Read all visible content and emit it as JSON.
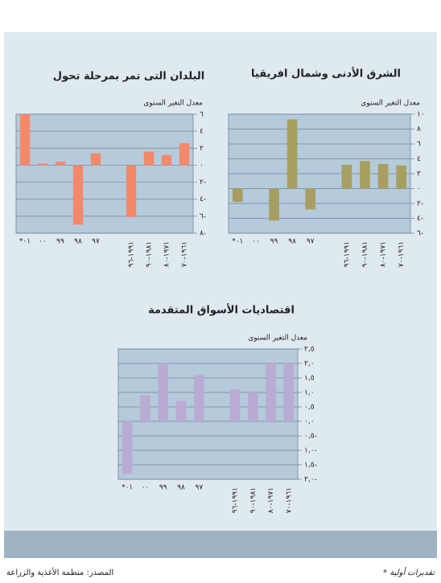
{
  "chart_data": [
    {
      "type": "bar",
      "title": "الشرق الأدنى وشمال افريقيا",
      "ylabel": "معدل التغير السنوى",
      "categories": [
        "*٠١",
        "٠٠",
        "٩٩",
        "٩٨",
        "٩٧",
        null,
        "١٩٩١-٩٦",
        "١٩٨١-٩٠",
        "١٩٧١-٨٠",
        "١٩٦١-٧٠"
      ],
      "values": [
        -1.8,
        0,
        -4.3,
        9.3,
        -2.8,
        null,
        3.2,
        3.7,
        3.3,
        3.1
      ],
      "color": "#a79e60",
      "ylim": [
        -6,
        10
      ],
      "yticks": [
        {
          "value": 10,
          "label": "١٠"
        },
        {
          "value": 8,
          "label": "٨"
        },
        {
          "value": 6,
          "label": "٦"
        },
        {
          "value": 4,
          "label": "٤"
        },
        {
          "value": 2,
          "label": "٢"
        },
        {
          "value": 0,
          "label": "٠"
        },
        {
          "value": -2,
          "label": "٢-"
        },
        {
          "value": -4,
          "label": "٤-"
        },
        {
          "value": -6,
          "label": "٦-"
        }
      ],
      "grid": true
    },
    {
      "type": "bar",
      "title": "البلدان التى تمر بمرحلة تحول",
      "ylabel": "معدل التغير السنوى",
      "categories": [
        "*٠١",
        "٠٠",
        "٩٩",
        "٩٨",
        "٩٧",
        null,
        "١٩٩١-٩٦",
        "١٩٨١-٩٠",
        "١٩٧١-٨٠",
        "١٩٦١-٧٠"
      ],
      "values": [
        6.0,
        0.2,
        0.4,
        -7.0,
        1.4,
        null,
        -6.1,
        1.6,
        1.2,
        2.6
      ],
      "color": "#f4886b",
      "ylim": [
        -8,
        6
      ],
      "yticks": [
        {
          "value": 6,
          "label": "٦"
        },
        {
          "value": 4,
          "label": "٤"
        },
        {
          "value": 2,
          "label": "٢"
        },
        {
          "value": 0,
          "label": "٠"
        },
        {
          "value": -2,
          "label": "٢-"
        },
        {
          "value": -4,
          "label": "٤-"
        },
        {
          "value": -6,
          "label": "٦-"
        },
        {
          "value": -8,
          "label": "٨-"
        }
      ],
      "grid": true
    },
    {
      "type": "bar",
      "title": "اقتصاديات الأسواق المتقدمة",
      "ylabel": "معدل التغير السنوى",
      "categories": [
        "*٠١",
        "٠٠",
        "٩٩",
        "٩٨",
        "٩٧",
        null,
        "١٩٩١-٩٦",
        "١٩٨١-٩٠",
        "١٩٧١-٨٠",
        "١٩٦١-٧٠"
      ],
      "values": [
        -1.8,
        0.9,
        2.0,
        0.7,
        1.6,
        null,
        1.1,
        1.0,
        2.0,
        2.0
      ],
      "color": "#b9abd2",
      "ylim": [
        -2,
        2.5
      ],
      "yticks": [
        {
          "value": 2.5,
          "label": "٢,٥"
        },
        {
          "value": 2,
          "label": "٢,٠"
        },
        {
          "value": 1.5,
          "label": "١,٥"
        },
        {
          "value": 1,
          "label": "١,٠"
        },
        {
          "value": 0.5,
          "label": "٠,٥"
        },
        {
          "value": 0,
          "label": "٠,٠"
        },
        {
          "value": -0.5,
          "label": "٠,٥-"
        },
        {
          "value": -1,
          "label": "١,٠-"
        },
        {
          "value": -1.5,
          "label": "١,٥-"
        },
        {
          "value": -2,
          "label": "٢,٠-"
        }
      ],
      "grid": true
    }
  ],
  "footer": {
    "source": "المصدر: منظمة الأغذية والزراعة",
    "note": "* تقديرات أولية"
  }
}
